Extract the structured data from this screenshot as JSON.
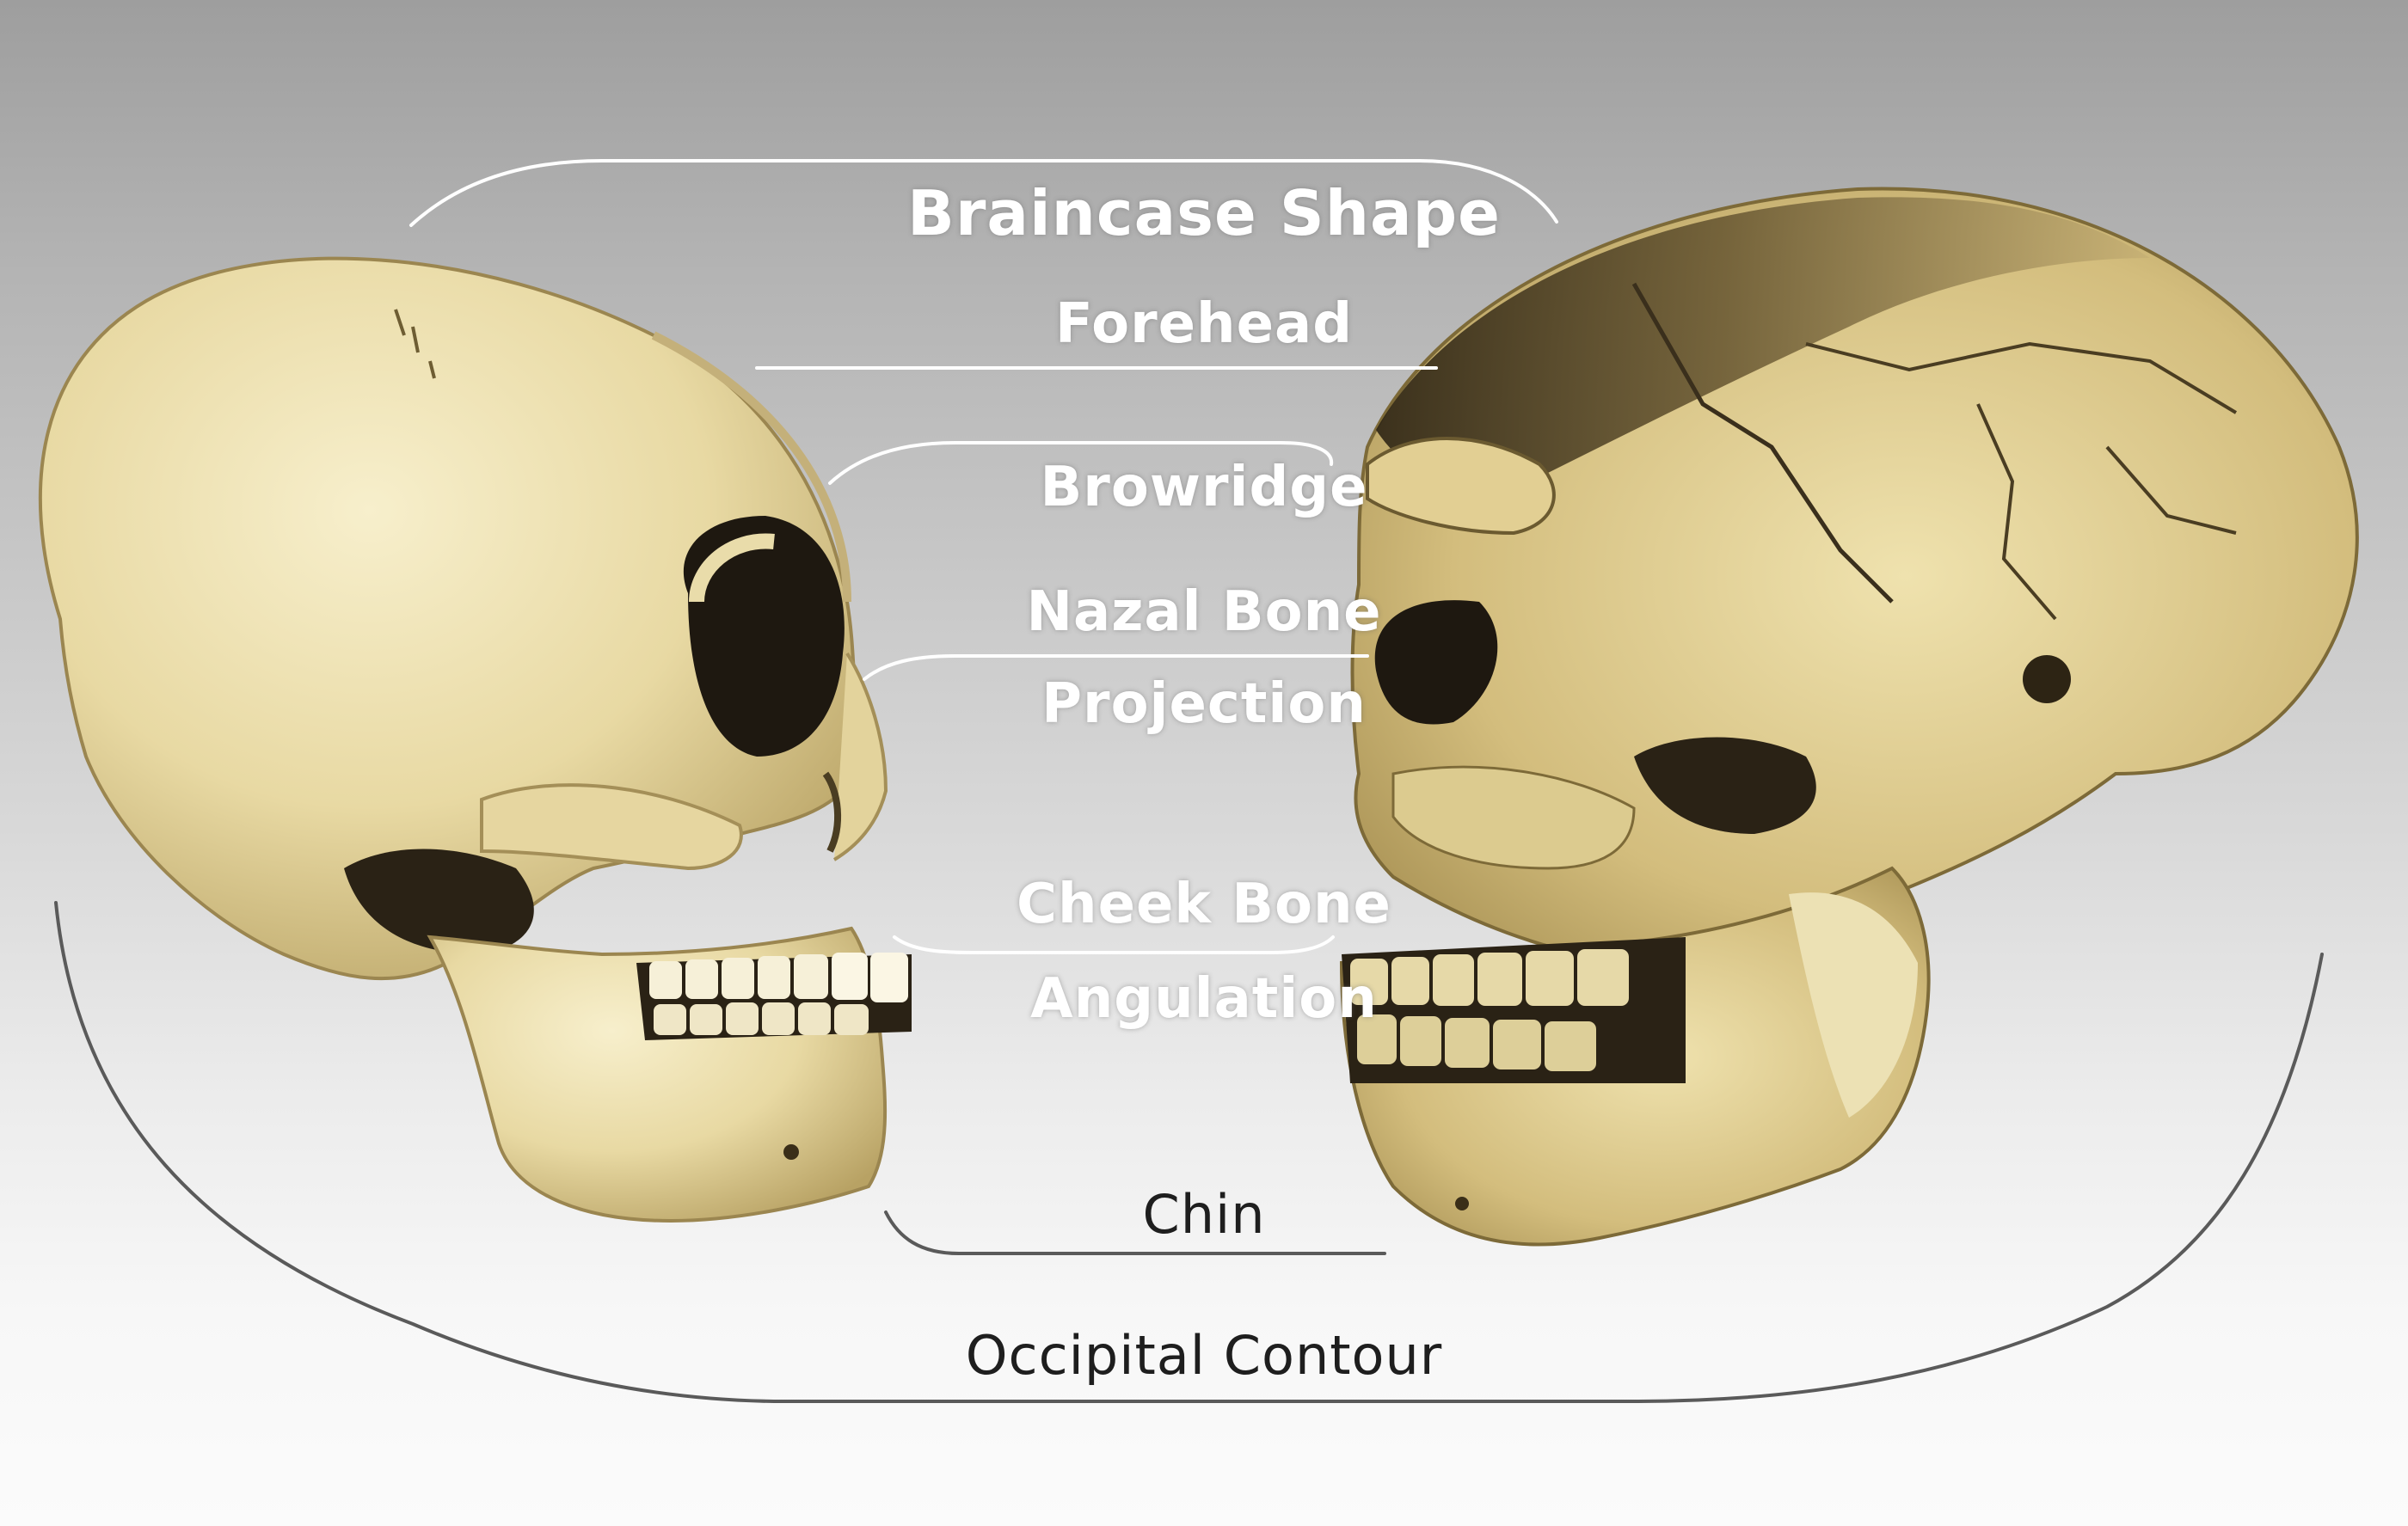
{
  "labels": {
    "braincase_shape": "Braincase Shape",
    "forehead": "Forehead",
    "browridge": "Browridge",
    "nasal_bone": "Nazal Bone",
    "projection": "Projection",
    "cheek_bone": "Cheek Bone",
    "angulation": "Angulation",
    "chin": "Chin",
    "occipital_contour": "Occipital Contour"
  },
  "colors": {
    "bone_light": "#ece0b4",
    "bone_mid": "#d7c48a",
    "bone_shadow": "#8f7d44",
    "fossil_dark": "#3a2f1c",
    "fossil_tan": "#c9b27a",
    "bracket_line": "#ffffff",
    "outer_line": "#555555"
  },
  "icons": {
    "left_skull": "modern-human-skull-icon",
    "right_skull": "archaic-human-skull-icon"
  }
}
